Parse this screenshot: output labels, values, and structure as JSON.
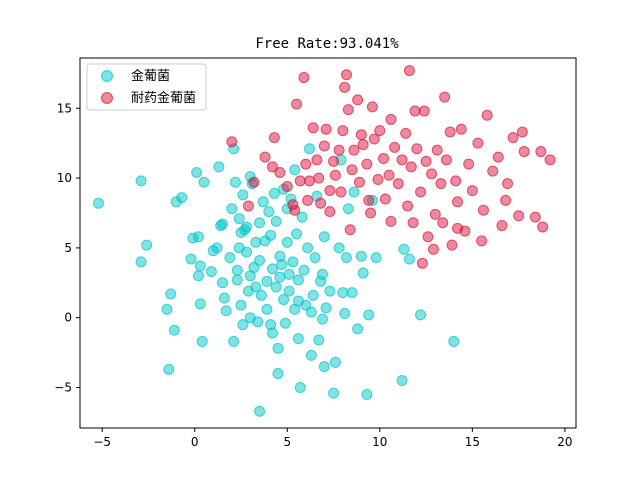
{
  "chart_data": {
    "type": "scatter",
    "title": "Free Rate:93.041%",
    "xlabel": "",
    "ylabel": "",
    "xlim": [
      -6.2,
      20.6
    ],
    "ylim": [
      -7.9,
      18.6
    ],
    "xticks": [
      -5,
      0,
      5,
      10,
      15,
      20
    ],
    "yticks": [
      -5,
      0,
      5,
      10,
      15
    ],
    "grid": false,
    "legend_position": "top-left",
    "series": [
      {
        "name": "金葡菌",
        "color": "#00c5c8",
        "points": [
          [
            -5.2,
            8.2
          ],
          [
            -2.9,
            9.8
          ],
          [
            -2.9,
            4.0
          ],
          [
            -2.6,
            5.2
          ],
          [
            -1.5,
            0.6
          ],
          [
            -1.3,
            1.7
          ],
          [
            -1.4,
            -3.7
          ],
          [
            -1.1,
            -0.9
          ],
          [
            -1.0,
            8.3
          ],
          [
            -0.7,
            8.6
          ],
          [
            -0.2,
            4.2
          ],
          [
            -0.1,
            5.7
          ],
          [
            0.1,
            10.4
          ],
          [
            0.2,
            5.8
          ],
          [
            0.2,
            3.0
          ],
          [
            0.3,
            3.7
          ],
          [
            0.3,
            1.0
          ],
          [
            0.4,
            -1.7
          ],
          [
            0.5,
            9.7
          ],
          [
            0.9,
            3.3
          ],
          [
            1.0,
            4.8
          ],
          [
            1.2,
            5.0
          ],
          [
            1.3,
            10.8
          ],
          [
            1.4,
            6.6
          ],
          [
            1.5,
            6.7
          ],
          [
            1.5,
            2.5
          ],
          [
            1.6,
            1.4
          ],
          [
            1.7,
            0.5
          ],
          [
            1.9,
            4.3
          ],
          [
            2.1,
            12.1
          ],
          [
            2.1,
            -1.7
          ],
          [
            2.2,
            9.7
          ],
          [
            2.3,
            3.4
          ],
          [
            2.3,
            2.7
          ],
          [
            2.4,
            7.1
          ],
          [
            2.4,
            5.0
          ],
          [
            2.5,
            6.1
          ],
          [
            2.5,
            0.9
          ],
          [
            2.6,
            8.8
          ],
          [
            2.6,
            -0.5
          ],
          [
            2.7,
            6.3
          ],
          [
            2.8,
            6.5
          ],
          [
            2.8,
            4.7
          ],
          [
            2.9,
            1.9
          ],
          [
            3.0,
            0.0
          ],
          [
            3.0,
            10.1
          ],
          [
            3.1,
            9.6
          ],
          [
            3.2,
            3.6
          ],
          [
            3.3,
            5.4
          ],
          [
            3.3,
            2.2
          ],
          [
            3.4,
            -0.3
          ],
          [
            3.5,
            6.8
          ],
          [
            3.5,
            4.1
          ],
          [
            3.5,
            -6.7
          ],
          [
            3.6,
            1.6
          ],
          [
            3.7,
            8.3
          ],
          [
            3.8,
            5.5
          ],
          [
            3.9,
            2.6
          ],
          [
            3.9,
            0.6
          ],
          [
            4.0,
            7.6
          ],
          [
            4.1,
            5.9
          ],
          [
            4.2,
            3.5
          ],
          [
            4.2,
            -1.1
          ],
          [
            4.3,
            8.9
          ],
          [
            4.4,
            6.9
          ],
          [
            4.4,
            2.2
          ],
          [
            4.5,
            -2.2
          ],
          [
            4.5,
            -4.0
          ],
          [
            4.6,
            4.4
          ],
          [
            4.7,
            3.8
          ],
          [
            4.8,
            9.2
          ],
          [
            4.8,
            1.3
          ],
          [
            4.9,
            -0.4
          ],
          [
            5.0,
            5.4
          ],
          [
            5.0,
            7.8
          ],
          [
            5.1,
            3.1
          ],
          [
            5.1,
            1.9
          ],
          [
            5.2,
            8.5
          ],
          [
            5.3,
            4.0
          ],
          [
            5.4,
            10.6
          ],
          [
            5.4,
            0.6
          ],
          [
            5.5,
            6.0
          ],
          [
            5.6,
            -1.5
          ],
          [
            5.6,
            2.7
          ],
          [
            5.7,
            -5.0
          ],
          [
            5.8,
            7.2
          ],
          [
            5.9,
            3.4
          ],
          [
            6.0,
            0.9
          ],
          [
            6.1,
            5.0
          ],
          [
            6.2,
            12.1
          ],
          [
            6.3,
            -2.7
          ],
          [
            6.4,
            1.6
          ],
          [
            6.5,
            4.3
          ],
          [
            6.6,
            8.7
          ],
          [
            6.7,
            -1.6
          ],
          [
            6.8,
            2.6
          ],
          [
            6.9,
            3.1
          ],
          [
            7.0,
            5.8
          ],
          [
            7.0,
            -3.5
          ],
          [
            7.1,
            0.7
          ],
          [
            7.3,
            1.9
          ],
          [
            7.5,
            -5.4
          ],
          [
            7.6,
            -3.2
          ],
          [
            7.8,
            5.0
          ],
          [
            7.9,
            11.3
          ],
          [
            8.0,
            1.8
          ],
          [
            8.1,
            0.3
          ],
          [
            8.2,
            4.3
          ],
          [
            8.3,
            7.8
          ],
          [
            8.5,
            1.8
          ],
          [
            8.6,
            9.0
          ],
          [
            8.8,
            -0.8
          ],
          [
            9.0,
            4.4
          ],
          [
            9.1,
            3.2
          ],
          [
            9.3,
            -5.5
          ],
          [
            9.4,
            0.2
          ],
          [
            9.6,
            8.4
          ],
          [
            9.8,
            4.3
          ],
          [
            11.2,
            -4.5
          ],
          [
            11.3,
            4.9
          ],
          [
            11.6,
            4.2
          ],
          [
            12.2,
            0.2
          ],
          [
            14.0,
            -1.7
          ],
          [
            4.6,
            2.9
          ],
          [
            6.3,
            0.4
          ],
          [
            3.0,
            3.0
          ],
          [
            5.6,
            1.2
          ],
          [
            6.9,
            -0.1
          ],
          [
            4.1,
            -0.5
          ],
          [
            2.0,
            7.8
          ]
        ]
      },
      {
        "name": "耐药金葡菌",
        "color": "#dc143c",
        "points": [
          [
            2.0,
            12.6
          ],
          [
            2.9,
            8.0
          ],
          [
            3.2,
            9.7
          ],
          [
            3.8,
            11.5
          ],
          [
            4.2,
            10.8
          ],
          [
            4.3,
            12.9
          ],
          [
            4.6,
            10.4
          ],
          [
            5.0,
            9.4
          ],
          [
            5.3,
            8.1
          ],
          [
            5.5,
            15.3
          ],
          [
            5.7,
            9.8
          ],
          [
            5.9,
            17.2
          ],
          [
            6.0,
            11.0
          ],
          [
            6.2,
            9.8
          ],
          [
            6.4,
            13.6
          ],
          [
            6.6,
            11.3
          ],
          [
            6.7,
            10.0
          ],
          [
            6.8,
            8.2
          ],
          [
            7.0,
            12.3
          ],
          [
            7.1,
            13.5
          ],
          [
            7.3,
            9.1
          ],
          [
            7.5,
            11.2
          ],
          [
            7.6,
            10.2
          ],
          [
            7.8,
            12.0
          ],
          [
            7.9,
            9.0
          ],
          [
            8.0,
            13.4
          ],
          [
            8.1,
            16.5
          ],
          [
            8.2,
            17.4
          ],
          [
            8.3,
            14.9
          ],
          [
            8.5,
            10.6
          ],
          [
            8.6,
            12.0
          ],
          [
            8.8,
            15.6
          ],
          [
            8.9,
            9.7
          ],
          [
            9.0,
            13.1
          ],
          [
            9.1,
            12.4
          ],
          [
            9.3,
            11.0
          ],
          [
            9.4,
            8.4
          ],
          [
            9.6,
            15.1
          ],
          [
            9.7,
            12.8
          ],
          [
            9.9,
            9.9
          ],
          [
            10.0,
            13.4
          ],
          [
            10.2,
            11.4
          ],
          [
            10.3,
            8.5
          ],
          [
            10.5,
            10.2
          ],
          [
            10.6,
            14.2
          ],
          [
            10.8,
            12.2
          ],
          [
            11.0,
            9.6
          ],
          [
            11.2,
            11.3
          ],
          [
            11.4,
            13.2
          ],
          [
            11.5,
            8.0
          ],
          [
            11.6,
            17.7
          ],
          [
            11.7,
            10.8
          ],
          [
            11.9,
            14.8
          ],
          [
            12.0,
            12.1
          ],
          [
            12.2,
            9.0
          ],
          [
            12.4,
            14.8
          ],
          [
            12.5,
            11.2
          ],
          [
            12.6,
            5.8
          ],
          [
            12.8,
            10.3
          ],
          [
            13.0,
            7.4
          ],
          [
            13.1,
            12.0
          ],
          [
            13.3,
            9.6
          ],
          [
            13.5,
            15.8
          ],
          [
            13.6,
            11.3
          ],
          [
            13.8,
            13.3
          ],
          [
            13.9,
            5.2
          ],
          [
            14.1,
            9.8
          ],
          [
            14.2,
            8.3
          ],
          [
            14.4,
            13.5
          ],
          [
            14.6,
            6.2
          ],
          [
            14.8,
            11.0
          ],
          [
            15.0,
            9.1
          ],
          [
            15.3,
            12.5
          ],
          [
            15.6,
            7.7
          ],
          [
            15.8,
            14.5
          ],
          [
            16.1,
            10.5
          ],
          [
            16.4,
            11.5
          ],
          [
            16.6,
            6.6
          ],
          [
            16.8,
            8.4
          ],
          [
            17.2,
            12.9
          ],
          [
            17.5,
            7.3
          ],
          [
            17.8,
            11.9
          ],
          [
            18.4,
            7.2
          ],
          [
            18.7,
            11.9
          ],
          [
            19.2,
            11.3
          ],
          [
            18.8,
            6.5
          ],
          [
            17.7,
            13.3
          ],
          [
            16.9,
            9.6
          ],
          [
            15.5,
            5.5
          ],
          [
            14.2,
            6.4
          ],
          [
            12.9,
            4.9
          ],
          [
            11.8,
            6.8
          ],
          [
            10.6,
            6.9
          ],
          [
            9.5,
            7.5
          ],
          [
            8.4,
            6.3
          ],
          [
            7.3,
            7.6
          ],
          [
            6.1,
            8.4
          ],
          [
            5.4,
            7.7
          ],
          [
            12.3,
            3.9
          ],
          [
            13.4,
            6.8
          ]
        ]
      }
    ]
  }
}
